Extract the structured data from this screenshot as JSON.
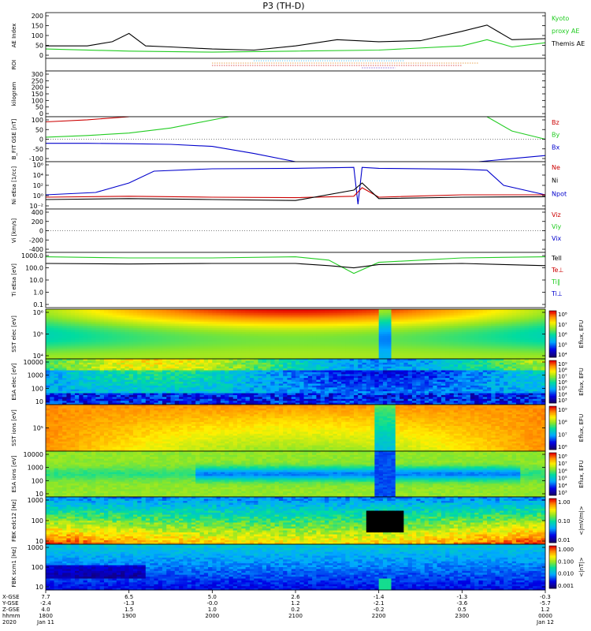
{
  "title": "P3 (TH-D)",
  "panels": [
    {
      "id": "ae",
      "ylabel": "AE Index",
      "ticks": [
        "200",
        "150",
        "100",
        "50",
        "0"
      ],
      "legend": [
        {
          "text": "Kyoto",
          "color": "#22cc22"
        },
        {
          "text": "proxy AE",
          "color": "#22cc22"
        },
        {
          "text": "Themis AE",
          "color": "#000000"
        }
      ]
    },
    {
      "id": "roi",
      "ylabel": "ROI",
      "ticks": [],
      "legend": []
    },
    {
      "id": "kgm",
      "ylabel": "kilogram",
      "ticks": [
        "300",
        "250",
        "200",
        "150",
        "100",
        "50",
        "0"
      ],
      "legend": []
    },
    {
      "id": "bfit",
      "ylabel": "B_FIT GSE [nT]",
      "ticks": [
        "100",
        "50",
        "0",
        "-50",
        "-100"
      ],
      "legend": [
        {
          "text": "Bz",
          "color": "#cc0000"
        },
        {
          "text": "By",
          "color": "#22cc22"
        },
        {
          "text": "Bx",
          "color": "#0000cc"
        }
      ]
    },
    {
      "id": "ni",
      "ylabel": "Ni eEsa [1/cc]",
      "ticks": [
        "10⁶",
        "10⁴",
        "10²",
        "10⁰",
        "10⁻²"
      ],
      "legend": [
        {
          "text": "Ne",
          "color": "#cc0000"
        },
        {
          "text": "Ni",
          "color": "#000000"
        },
        {
          "text": "Npot",
          "color": "#0000cc"
        }
      ]
    },
    {
      "id": "vi",
      "ylabel": "Vi [km/s]",
      "ticks": [
        "400",
        "200",
        "0",
        "-200",
        "-400"
      ],
      "legend": [
        {
          "text": "Viz",
          "color": "#cc0000"
        },
        {
          "text": "Viy",
          "color": "#22cc22"
        },
        {
          "text": "Vix",
          "color": "#0000cc"
        }
      ]
    },
    {
      "id": "ti",
      "ylabel": "Ti eEsa [eV]",
      "ticks": [
        "1000.0",
        "100.0",
        "10.0",
        "1.0",
        "0.1"
      ],
      "legend": [
        {
          "text": "Tell",
          "color": "#000000"
        },
        {
          "text": "Te⊥",
          "color": "#cc0000"
        },
        {
          "text": "Ti∥",
          "color": "#22cc22"
        },
        {
          "text": "Ti⊥",
          "color": "#0000cc"
        }
      ]
    },
    {
      "id": "sste",
      "ylabel": "SST elec [eV]",
      "ticks": [
        "10⁶",
        "10⁵",
        "10⁴"
      ],
      "cbar": "Eflux, EFU",
      "cbticks": [
        "10⁸",
        "10⁷",
        "10⁶",
        "10⁵",
        "10⁴"
      ]
    },
    {
      "id": "esae",
      "ylabel": "ESA elec [eV]",
      "ticks": [
        "10000",
        "1000",
        "100",
        "10"
      ],
      "cbar": "Eflux, EFU",
      "cbticks": [
        "10⁹",
        "10⁸",
        "10⁷",
        "10⁶",
        "10⁵",
        "10⁴",
        "10³"
      ]
    },
    {
      "id": "ssti",
      "ylabel": "SST ions [eV]",
      "ticks": [
        "10⁵"
      ],
      "cbar": "Eflux, EFU",
      "cbticks": [
        "10⁹",
        "10⁸",
        "10⁷",
        "10⁶"
      ]
    },
    {
      "id": "esai",
      "ylabel": "ESA ions [eV]",
      "ticks": [
        "10000",
        "1000",
        "100",
        "10"
      ],
      "cbar": "Eflux, EFU",
      "cbticks": [
        "10⁸",
        "10⁷",
        "10⁶",
        "10⁵",
        "10⁴",
        "10³"
      ]
    },
    {
      "id": "fbke",
      "ylabel": "FBK edc12 [Hz]",
      "ticks": [
        "1000",
        "100",
        "10"
      ],
      "cbar": "<|mV/m|>",
      "cbticks": [
        "1.00",
        "0.10",
        "0.01"
      ]
    },
    {
      "id": "fbkb",
      "ylabel": "FBK scm1 [Hz]",
      "ticks": [
        "1000",
        "100",
        "10"
      ],
      "cbar": "<|nT|>",
      "cbticks": [
        "1.000",
        "0.100",
        "0.010",
        "0.001"
      ]
    }
  ],
  "xaxis": {
    "row_labels": [
      "X-GSE",
      "Y-GSE",
      "Z-GSE",
      "hhmm",
      "2020"
    ],
    "columns": [
      [
        "7.7",
        "-2.4",
        "4.0",
        "1800",
        "Jan 11"
      ],
      [
        "6.5",
        "-1.3",
        "1.5",
        "1900",
        ""
      ],
      [
        "5.0",
        "-0.0",
        "1.0",
        "2000",
        ""
      ],
      [
        "2.6",
        "1.2",
        "0.2",
        "2100",
        ""
      ],
      [
        "-1.4",
        "-2.1",
        "-0.2",
        "2200",
        ""
      ],
      [
        "-1.3",
        "-3.6",
        "0.5",
        "2300",
        ""
      ],
      [
        "-0.3",
        "-5.7",
        "1.2",
        "0000",
        "Jan 12"
      ]
    ]
  },
  "chart_data": {
    "type": "line",
    "title": "P3 (TH-D)",
    "x_hours": [
      18,
      19,
      20,
      21,
      22,
      23,
      24
    ],
    "ae_themis": {
      "x": [
        18,
        18.5,
        18.8,
        19.0,
        19.2,
        19.5,
        20.0,
        20.5,
        21.0,
        21.5,
        22.0,
        22.5,
        23.0,
        23.3,
        23.6,
        24.0
      ],
      "y": [
        60,
        60,
        80,
        120,
        60,
        55,
        45,
        40,
        60,
        90,
        80,
        85,
        130,
        160,
        90,
        95
      ]
    },
    "ae_kyoto": {
      "x": [
        18,
        19,
        20,
        21,
        22,
        23,
        23.3,
        23.6,
        24.0
      ],
      "y": [
        45,
        35,
        30,
        35,
        40,
        60,
        90,
        55,
        75
      ]
    }
  }
}
